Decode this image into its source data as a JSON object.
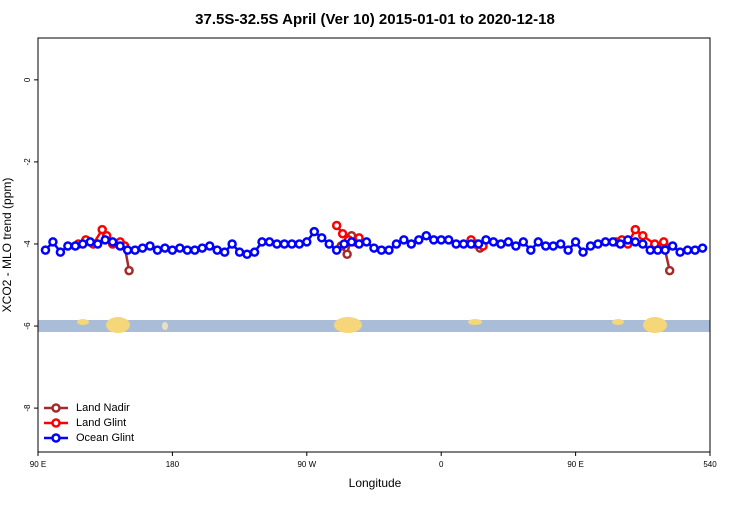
{
  "chart_data": {
    "type": "line",
    "title": "37.5S-32.5S April (Ver 10)   2015-01-01 to 2020-12-18",
    "x_label": "Longitude",
    "y_label": "XCO2 - MLO trend (ppm)",
    "xlim": [
      90,
      540
    ],
    "ylim": [
      -9.07,
      1.02
    ],
    "xticks": [
      {
        "value": 90,
        "label": "90 E"
      },
      180,
      {
        "value": 270,
        "label": "90 W"
      },
      {
        "value": 360,
        "label": "0"
      },
      {
        "value": 450,
        "label": "90 E"
      },
      540
    ],
    "yticks": [
      0,
      -2,
      -4,
      -6,
      -8
    ],
    "legend": "bottom-left",
    "series": [
      {
        "name": "Land Nadir",
        "color": "#a52a2a",
        "x": [
          148,
          151,
          152,
          293,
          297,
          300,
          301,
          383,
          386,
          387,
          509,
          513
        ],
        "values": [
          -4.05,
          -4.65,
          null,
          -4.05,
          -4.25,
          -3.8,
          null,
          -4.0,
          -4.1,
          null,
          -4.0,
          -4.65
        ]
      },
      {
        "name": "Land Glint",
        "color": "#ff0000",
        "x": [
          117,
          122,
          127,
          133,
          136,
          140,
          145,
          148,
          149,
          290,
          294,
          298,
          302,
          305,
          306,
          380,
          384,
          388,
          389,
          477,
          481,
          485,
          490,
          495,
          503,
          509
        ],
        "values": [
          -4.0,
          -3.9,
          -4.0,
          -3.65,
          -3.8,
          -4.0,
          -3.95,
          -4.05,
          null,
          -3.55,
          -3.75,
          -3.9,
          -3.95,
          -3.85,
          null,
          -3.9,
          -4.0,
          -4.05,
          null,
          -3.95,
          -3.9,
          -4.0,
          -3.65,
          -3.8,
          -4.0,
          -3.95
        ]
      },
      {
        "name": "Ocean Glint",
        "color": "#0000ff",
        "x": [
          95,
          100,
          105,
          110,
          115,
          120,
          125,
          130,
          135,
          140,
          145,
          150,
          155,
          160,
          165,
          170,
          175,
          180,
          185,
          190,
          195,
          200,
          205,
          210,
          215,
          220,
          225,
          230,
          235,
          240,
          245,
          250,
          255,
          260,
          265,
          270,
          275,
          280,
          285,
          290,
          295,
          300,
          305,
          310,
          315,
          320,
          325,
          330,
          335,
          340,
          345,
          350,
          355,
          360,
          365,
          370,
          375,
          380,
          385,
          390,
          395,
          400,
          405,
          410,
          415,
          420,
          425,
          430,
          435,
          440,
          445,
          450,
          455,
          460,
          465,
          470,
          475,
          480,
          485,
          490,
          495,
          500,
          505,
          510,
          515,
          520,
          525,
          530,
          535
        ],
        "values": [
          -4.15,
          -3.95,
          -4.2,
          -4.05,
          -4.05,
          -4.0,
          -3.95,
          -4.0,
          -3.9,
          -3.95,
          -4.05,
          -4.15,
          -4.15,
          -4.1,
          -4.05,
          -4.15,
          -4.1,
          -4.15,
          -4.1,
          -4.15,
          -4.15,
          -4.1,
          -4.05,
          -4.15,
          -4.2,
          -4.0,
          -4.2,
          -4.25,
          -4.2,
          -3.95,
          -3.95,
          -4.0,
          -4.0,
          -4.0,
          -4.0,
          -3.95,
          -3.7,
          -3.85,
          -4.0,
          -4.15,
          -4.0,
          -3.95,
          -4.0,
          -3.95,
          -4.1,
          -4.15,
          -4.15,
          -4.0,
          -3.9,
          -4.0,
          -3.9,
          -3.8,
          -3.9,
          -3.9,
          -3.9,
          -4.0,
          -4.0,
          -4.0,
          -4.0,
          -3.9,
          -3.95,
          -4.0,
          -3.95,
          -4.05,
          -3.95,
          -4.15,
          -3.95,
          -4.05,
          -4.05,
          -4.0,
          -4.15,
          -3.95,
          -4.2,
          -4.05,
          -4.0,
          -3.95,
          -3.95,
          -4.0,
          -3.9,
          -3.95,
          -4.0,
          -4.15,
          -4.15,
          -4.15,
          -4.05,
          -4.2,
          -4.15,
          -4.15,
          -4.1
        ]
      }
    ]
  }
}
